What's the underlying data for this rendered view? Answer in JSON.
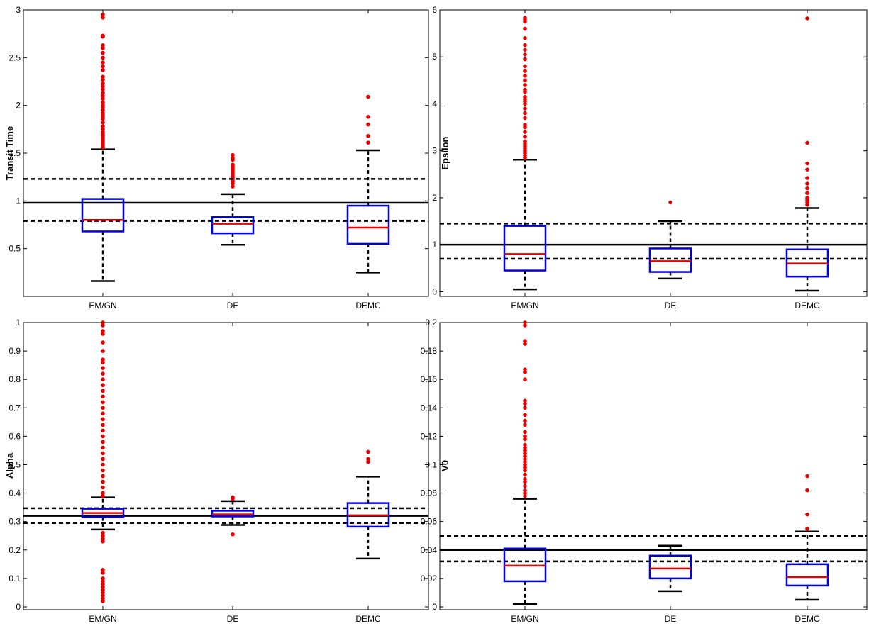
{
  "chart_data": [
    {
      "type": "box",
      "ylabel": "Transit Time",
      "categories": [
        "EM/GN",
        "DE",
        "DEMC"
      ],
      "ylim": [
        0,
        3
      ],
      "yticks": [
        0.5,
        1,
        1.5,
        2,
        2.5,
        3
      ],
      "ytick_labels": [
        "0.5",
        "1",
        "1.5",
        "2",
        "2.5",
        "3"
      ],
      "reference_lines": {
        "solid": 0.98,
        "dashed": [
          0.79,
          1.23
        ]
      },
      "boxes": [
        {
          "q1": 0.68,
          "median": 0.8,
          "q3": 1.02,
          "whisker_low": 0.16,
          "whisker_high": 1.54,
          "outliers": [
            1.56,
            1.58,
            1.6,
            1.62,
            1.64,
            1.66,
            1.68,
            1.7,
            1.72,
            1.75,
            1.78,
            1.82,
            1.86,
            1.88,
            1.9,
            1.92,
            1.95,
            1.98,
            2.0,
            2.03,
            2.07,
            2.1,
            2.13,
            2.17,
            2.2,
            2.23,
            2.27,
            2.3,
            2.37,
            2.41,
            2.45,
            2.5,
            2.55,
            2.6,
            2.63,
            2.72,
            2.73,
            2.92,
            2.95
          ]
        },
        {
          "q1": 0.66,
          "median": 0.76,
          "q3": 0.83,
          "whisker_low": 0.54,
          "whisker_high": 1.07,
          "outliers": [
            1.15,
            1.18,
            1.2,
            1.22,
            1.24,
            1.26,
            1.28,
            1.3,
            1.32,
            1.34,
            1.36,
            1.38,
            1.43,
            1.45,
            1.48
          ]
        },
        {
          "q1": 0.55,
          "median": 0.72,
          "q3": 0.95,
          "whisker_low": 0.25,
          "whisker_high": 1.53,
          "outliers": [
            1.61,
            1.68,
            1.8,
            1.88,
            2.09
          ]
        }
      ]
    },
    {
      "type": "box",
      "ylabel": "Epsilon",
      "categories": [
        "EM/GN",
        "DE",
        "DEMC"
      ],
      "ylim": [
        -0.1,
        6
      ],
      "yticks": [
        0,
        1,
        2,
        3,
        4,
        5,
        6
      ],
      "ytick_labels": [
        "0",
        "1",
        "2",
        "3",
        "4",
        "5",
        "6"
      ],
      "reference_lines": {
        "solid": 1.0,
        "dashed": [
          0.7,
          1.45
        ]
      },
      "boxes": [
        {
          "q1": 0.45,
          "median": 0.8,
          "q3": 1.4,
          "whisker_low": 0.05,
          "whisker_high": 2.81,
          "outliers": [
            2.85,
            2.9,
            2.95,
            3.0,
            3.05,
            3.1,
            3.15,
            3.2,
            3.3,
            3.4,
            3.5,
            3.55,
            3.7,
            3.8,
            3.9,
            4.0,
            4.05,
            4.1,
            4.15,
            4.25,
            4.3,
            4.4,
            4.5,
            4.6,
            4.7,
            4.8,
            4.95,
            5.05,
            5.15,
            5.25,
            5.4,
            5.6,
            5.75,
            5.8,
            5.83
          ]
        },
        {
          "q1": 0.42,
          "median": 0.65,
          "q3": 0.92,
          "whisker_low": 0.28,
          "whisker_high": 1.5,
          "outliers": [
            1.9
          ]
        },
        {
          "q1": 0.32,
          "median": 0.6,
          "q3": 0.9,
          "whisker_low": 0.02,
          "whisker_high": 1.78,
          "outliers": [
            1.85,
            1.9,
            1.95,
            2.0,
            2.1,
            2.2,
            2.3,
            2.42,
            2.6,
            2.73,
            3.17,
            5.82
          ]
        }
      ]
    },
    {
      "type": "box",
      "ylabel": "Alpha",
      "categories": [
        "EM/GN",
        "DE",
        "DEMC"
      ],
      "ylim": [
        -0.01,
        1
      ],
      "yticks": [
        0,
        0.1,
        0.2,
        0.3,
        0.4,
        0.5,
        0.6,
        0.7,
        0.8,
        0.9,
        1
      ],
      "ytick_labels": [
        "0",
        "0.1",
        "0.2",
        "0.3",
        "0.4",
        "0.5",
        "0.6",
        "0.7",
        "0.8",
        "0.9",
        "1"
      ],
      "reference_lines": {
        "solid": 0.32,
        "dashed": [
          0.295,
          0.347
        ]
      },
      "boxes": [
        {
          "q1": 0.315,
          "median": 0.33,
          "q3": 0.345,
          "whisker_low": 0.272,
          "whisker_high": 0.385,
          "outliers": [
            0.02,
            0.03,
            0.04,
            0.05,
            0.06,
            0.07,
            0.08,
            0.09,
            0.1,
            0.12,
            0.13,
            0.23,
            0.24,
            0.25,
            0.26,
            0.39,
            0.4,
            0.42,
            0.44,
            0.46,
            0.48,
            0.5,
            0.52,
            0.54,
            0.56,
            0.58,
            0.6,
            0.62,
            0.64,
            0.66,
            0.68,
            0.7,
            0.72,
            0.74,
            0.76,
            0.78,
            0.8,
            0.82,
            0.84,
            0.86,
            0.87,
            0.9,
            0.93,
            0.96,
            0.97,
            0.99,
            1.0
          ]
        },
        {
          "q1": 0.318,
          "median": 0.325,
          "q3": 0.338,
          "whisker_low": 0.288,
          "whisker_high": 0.372,
          "outliers": [
            0.255,
            0.38,
            0.385
          ]
        },
        {
          "q1": 0.282,
          "median": 0.322,
          "q3": 0.365,
          "whisker_low": 0.17,
          "whisker_high": 0.458,
          "outliers": [
            0.51,
            0.52,
            0.545
          ]
        }
      ]
    },
    {
      "type": "box",
      "ylabel": "V0",
      "categories": [
        "EM/GN",
        "DE",
        "DEMC"
      ],
      "ylim": [
        -0.002,
        0.2
      ],
      "yticks": [
        0,
        0.02,
        0.04,
        0.06,
        0.08,
        0.1,
        0.12,
        0.14,
        0.16,
        0.18,
        0.2
      ],
      "ytick_labels": [
        "0",
        "0.02",
        "0.04",
        "0.06",
        "0.08",
        "0.1",
        "0.12",
        "0.14",
        "0.16",
        "0.18",
        "0.2"
      ],
      "reference_lines": {
        "solid": 0.04,
        "dashed": [
          0.032,
          0.05
        ]
      },
      "boxes": [
        {
          "q1": 0.018,
          "median": 0.029,
          "q3": 0.041,
          "whisker_low": 0.002,
          "whisker_high": 0.076,
          "outliers": [
            0.078,
            0.08,
            0.082,
            0.085,
            0.088,
            0.09,
            0.093,
            0.096,
            0.098,
            0.1,
            0.102,
            0.104,
            0.106,
            0.108,
            0.11,
            0.112,
            0.114,
            0.118,
            0.12,
            0.123,
            0.128,
            0.131,
            0.135,
            0.14,
            0.143,
            0.145,
            0.16,
            0.165,
            0.167,
            0.185,
            0.187,
            0.198,
            0.2
          ]
        },
        {
          "q1": 0.02,
          "median": 0.027,
          "q3": 0.036,
          "whisker_low": 0.011,
          "whisker_high": 0.043,
          "outliers": []
        },
        {
          "q1": 0.015,
          "median": 0.021,
          "q3": 0.03,
          "whisker_low": 0.005,
          "whisker_high": 0.053,
          "outliers": [
            0.055,
            0.065,
            0.082,
            0.092
          ]
        }
      ]
    }
  ],
  "colors": {
    "box": "#0000e6",
    "median": "#e60000",
    "outlier": "#e60000",
    "whisker": "#000000",
    "reference_line": "#000000",
    "axis": "#000000"
  }
}
